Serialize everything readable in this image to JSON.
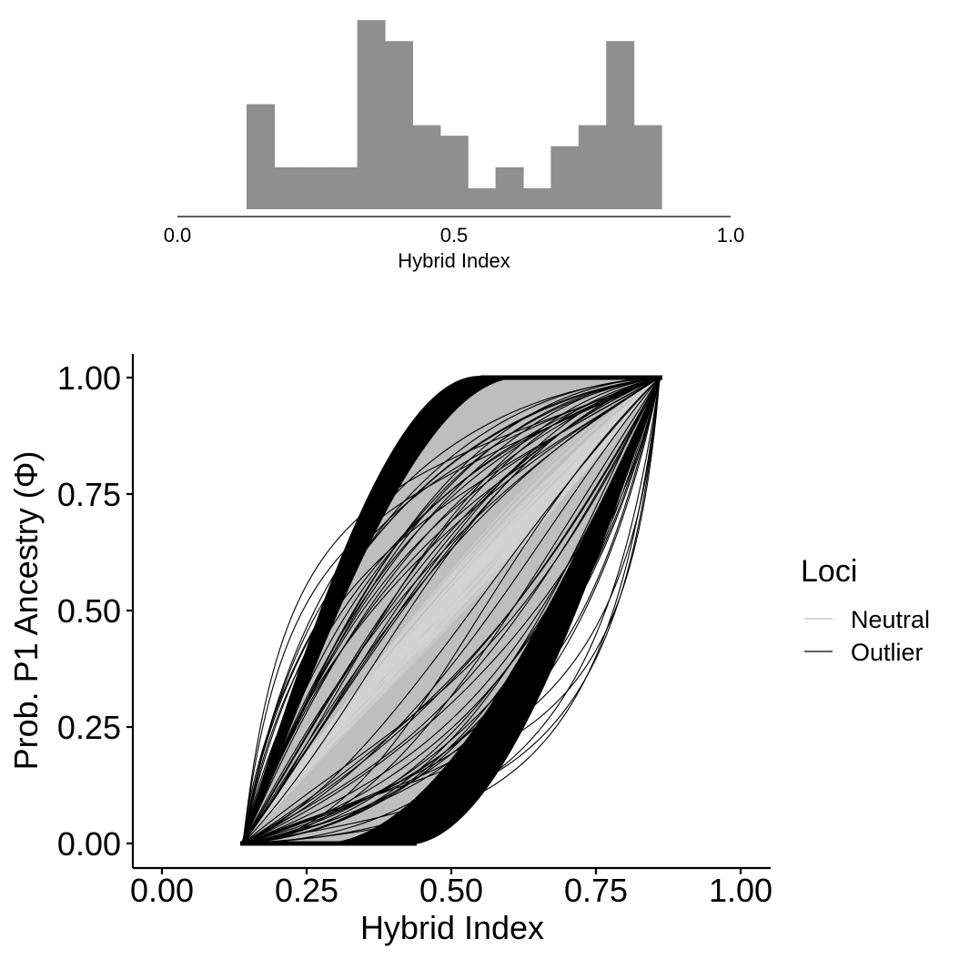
{
  "chart_data": [
    {
      "type": "bar",
      "panel": "histogram",
      "xlabel": "Hybrid Index",
      "ylabel": "",
      "xlim": [
        0.0,
        1.0
      ],
      "xticks": [
        "0.0",
        "0.5",
        "1.0"
      ],
      "grid": false,
      "bin_width": 0.05,
      "bin_starts": [
        0.125,
        0.175,
        0.225,
        0.275,
        0.325,
        0.375,
        0.425,
        0.475,
        0.525,
        0.575,
        0.625,
        0.675,
        0.725,
        0.775,
        0.825
      ],
      "values": [
        5,
        2,
        2,
        2,
        9,
        8,
        4,
        3.5,
        1,
        2,
        1,
        3,
        4,
        8,
        4
      ],
      "bar_color": "#8f8f8f"
    },
    {
      "type": "line",
      "panel": "genomic-clines",
      "xlabel": "Hybrid Index",
      "ylabel": "Prob. P1 Ancestry (Φ)",
      "xlim": [
        0.0,
        1.0
      ],
      "ylim": [
        0.0,
        1.0
      ],
      "xticks": [
        "0.00",
        "0.25",
        "0.50",
        "0.75",
        "1.00"
      ],
      "yticks": [
        "0.00",
        "0.25",
        "0.50",
        "0.75",
        "1.00"
      ],
      "grid": false,
      "hybrid_index_range": [
        0.14,
        0.86
      ],
      "legend": {
        "title": "Loci",
        "position": "right",
        "entries": [
          {
            "label": "Neutral",
            "color": "#bebebe"
          },
          {
            "label": "Outlier",
            "color": "#000000"
          }
        ]
      },
      "series": [
        {
          "name": "Outlier",
          "color": "#000000",
          "envelope_upper_reaches_one_at": 0.55,
          "envelope_lower_leaves_zero_at": 0.42
        },
        {
          "name": "Neutral",
          "color": "#bebebe",
          "envelope_upper_reaches_one_at": 0.62,
          "envelope_lower_leaves_zero_at": 0.27
        }
      ]
    }
  ]
}
